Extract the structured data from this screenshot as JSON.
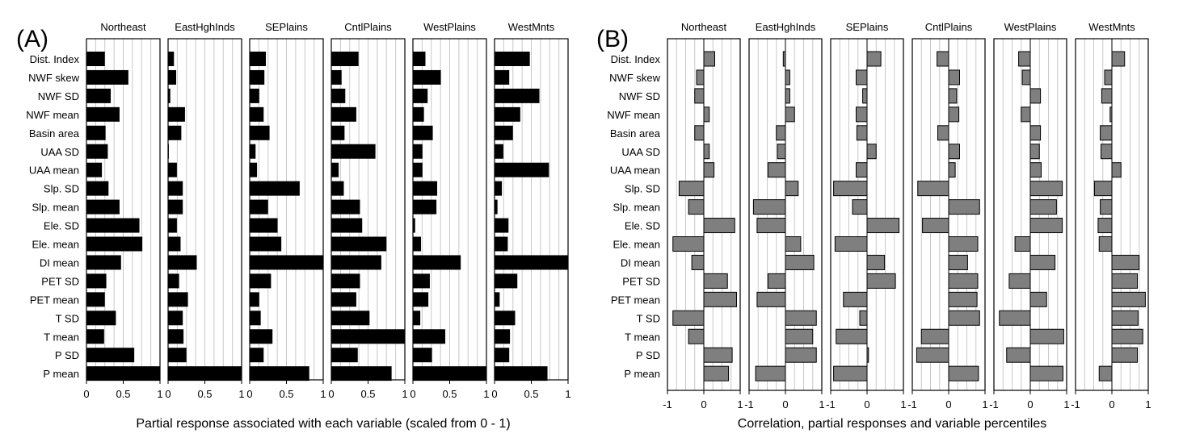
{
  "chart_data": [
    {
      "type": "bar",
      "panel_label": "(A)",
      "xlabel": "Partial response associated with each variable (scaled from 0 - 1)",
      "xlim": [
        0,
        1
      ],
      "xticks": [
        "0",
        "0.5",
        "1"
      ],
      "xtick_values": [
        0,
        0.5,
        1
      ],
      "bar_color": "#000000",
      "grid": "vertical",
      "categories": [
        "Dist. Index",
        "NWF skew",
        "NWF SD",
        "NWF mean",
        "Basin area",
        "UAA SD",
        "UAA mean",
        "Slp. SD",
        "Slp. mean",
        "Ele. SD",
        "Ele. mean",
        "DI mean",
        "PET SD",
        "PET mean",
        "T SD",
        "T mean",
        "P SD",
        "P mean"
      ],
      "series": [
        {
          "name": "Northeast",
          "values": [
            0.25,
            0.57,
            0.33,
            0.45,
            0.26,
            0.29,
            0.21,
            0.3,
            0.45,
            0.72,
            0.76,
            0.47,
            0.27,
            0.25,
            0.4,
            0.24,
            0.65,
            1.0
          ]
        },
        {
          "name": "EastHghInds",
          "values": [
            0.08,
            0.11,
            0.03,
            0.23,
            0.18,
            0.01,
            0.12,
            0.2,
            0.2,
            0.12,
            0.17,
            0.39,
            0.15,
            0.27,
            0.2,
            0.21,
            0.25,
            1.0
          ]
        },
        {
          "name": "SEPlains",
          "values": [
            0.22,
            0.2,
            0.13,
            0.19,
            0.27,
            0.08,
            0.1,
            0.68,
            0.25,
            0.38,
            0.43,
            1.0,
            0.29,
            0.13,
            0.15,
            0.31,
            0.19,
            0.81
          ]
        },
        {
          "name": "CntlPlains",
          "values": [
            0.37,
            0.14,
            0.19,
            0.34,
            0.18,
            0.6,
            0.1,
            0.17,
            0.39,
            0.42,
            0.75,
            0.68,
            0.39,
            0.34,
            0.52,
            1.0,
            0.36,
            0.82
          ]
        },
        {
          "name": "WestPlains",
          "values": [
            0.17,
            0.38,
            0.2,
            0.15,
            0.27,
            0.13,
            0.13,
            0.33,
            0.32,
            0.03,
            0.11,
            0.65,
            0.23,
            0.21,
            0.1,
            0.44,
            0.26,
            1.0
          ]
        },
        {
          "name": "WestMnts",
          "values": [
            0.48,
            0.2,
            0.61,
            0.35,
            0.25,
            0.12,
            0.74,
            0.1,
            0.04,
            0.19,
            0.18,
            1.0,
            0.31,
            0.07,
            0.28,
            0.21,
            0.2,
            0.72
          ]
        }
      ]
    },
    {
      "type": "bar",
      "panel_label": "(B)",
      "xlabel": "Correlation, partial responses and variable percentiles",
      "xlim": [
        -1,
        1
      ],
      "xticks": [
        "-1",
        "0",
        "1"
      ],
      "xtick_values": [
        -1,
        0,
        1
      ],
      "bar_color": "#7f7f7f",
      "grid": "vertical",
      "categories": [
        "Dist. Index",
        "NWF skew",
        "NWF SD",
        "NWF mean",
        "Basin area",
        "UAA SD",
        "UAA mean",
        "Slp. SD",
        "Slp. mean",
        "Ele. SD",
        "Ele. mean",
        "DI mean",
        "PET SD",
        "PET mean",
        "T SD",
        "T mean",
        "P SD",
        "P mean"
      ],
      "series": [
        {
          "name": "Northeast",
          "values": [
            0.3,
            -0.2,
            -0.25,
            0.15,
            -0.25,
            0.15,
            0.28,
            -0.68,
            -0.42,
            0.85,
            -0.85,
            -0.33,
            0.65,
            0.9,
            -0.85,
            -0.42,
            0.78,
            0.68
          ]
        },
        {
          "name": "EastHghInds",
          "values": [
            -0.06,
            0.12,
            0.12,
            0.25,
            -0.25,
            -0.22,
            -0.48,
            0.35,
            -0.88,
            -0.78,
            0.42,
            0.78,
            -0.48,
            -0.78,
            0.85,
            0.75,
            0.85,
            -0.82
          ]
        },
        {
          "name": "SEPlains",
          "values": [
            0.38,
            -0.3,
            -0.12,
            -0.3,
            -0.28,
            0.25,
            -0.3,
            -0.92,
            -0.4,
            0.88,
            -0.88,
            0.48,
            0.78,
            -0.65,
            -0.2,
            -0.85,
            0.04,
            -0.92
          ]
        },
        {
          "name": "CntlPlains",
          "values": [
            -0.32,
            0.3,
            0.22,
            0.28,
            -0.3,
            0.3,
            0.18,
            -0.85,
            0.85,
            -0.72,
            0.8,
            0.52,
            0.8,
            0.78,
            0.85,
            -0.75,
            -0.88,
            0.82
          ]
        },
        {
          "name": "WestPlains",
          "values": [
            -0.32,
            -0.22,
            0.28,
            -0.25,
            0.28,
            0.25,
            0.3,
            0.88,
            0.72,
            0.88,
            -0.42,
            0.68,
            -0.58,
            0.45,
            -0.85,
            0.92,
            -0.65,
            0.9
          ]
        },
        {
          "name": "WestMnts",
          "values": [
            0.35,
            -0.2,
            -0.28,
            -0.05,
            -0.32,
            -0.3,
            0.25,
            -0.48,
            -0.32,
            -0.38,
            -0.35,
            0.75,
            0.7,
            0.92,
            0.72,
            0.85,
            0.7,
            -0.35
          ]
        }
      ]
    }
  ]
}
